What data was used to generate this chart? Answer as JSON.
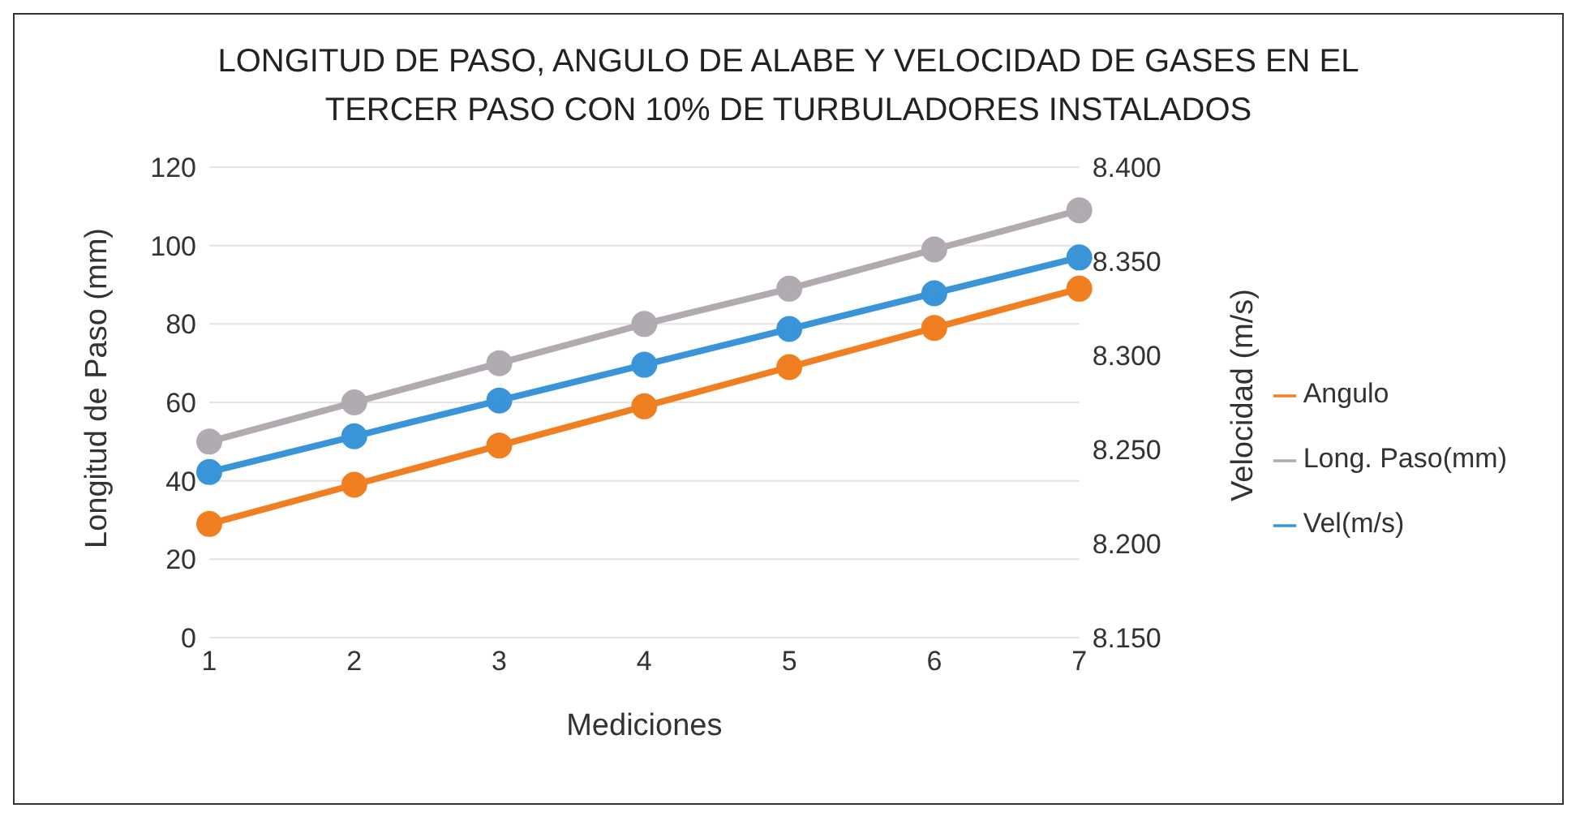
{
  "chart_data": {
    "type": "line",
    "title": "LONGITUD DE PASO, ANGULO DE ALABE Y VELOCIDAD DE GASES EN EL TERCER PASO CON 10% DE TURBULADORES INSTALADOS",
    "xlabel": "Mediciones",
    "ylabel": "Longitud de Paso (mm)",
    "y2label": "Velocidad (m/s)",
    "categories": [
      "1",
      "2",
      "3",
      "4",
      "5",
      "6",
      "7"
    ],
    "series": [
      {
        "name": "Angulo",
        "color": "#f07f22",
        "values": [
          29,
          39,
          49,
          59,
          69,
          79,
          89
        ]
      },
      {
        "name": "Long. Paso(mm)",
        "color": "#b1aab0",
        "values": [
          50,
          60,
          70,
          80,
          89,
          99,
          109
        ]
      },
      {
        "name": "Vel(m/s)",
        "color": "#3a95d8",
        "axis": "y2",
        "values": [
          8.238,
          8.257,
          8.276,
          8.295,
          8.314,
          8.333,
          8.352
        ]
      }
    ],
    "ylim": [
      0,
      120
    ],
    "yticks": [
      0,
      20,
      40,
      60,
      80,
      100,
      120
    ],
    "y2lim": [
      8.15,
      8.4
    ],
    "y2ticks": [
      {
        "value": 8.15,
        "label": "8.150"
      },
      {
        "value": 8.2,
        "label": "8.200"
      },
      {
        "value": 8.25,
        "label": "8.250"
      },
      {
        "value": 8.3,
        "label": "8.300"
      },
      {
        "value": 8.35,
        "label": "8.350"
      },
      {
        "value": 8.4,
        "label": "8.400"
      }
    ],
    "grid": "y",
    "legend": "right",
    "marker": "circle",
    "line_style": "solid"
  }
}
